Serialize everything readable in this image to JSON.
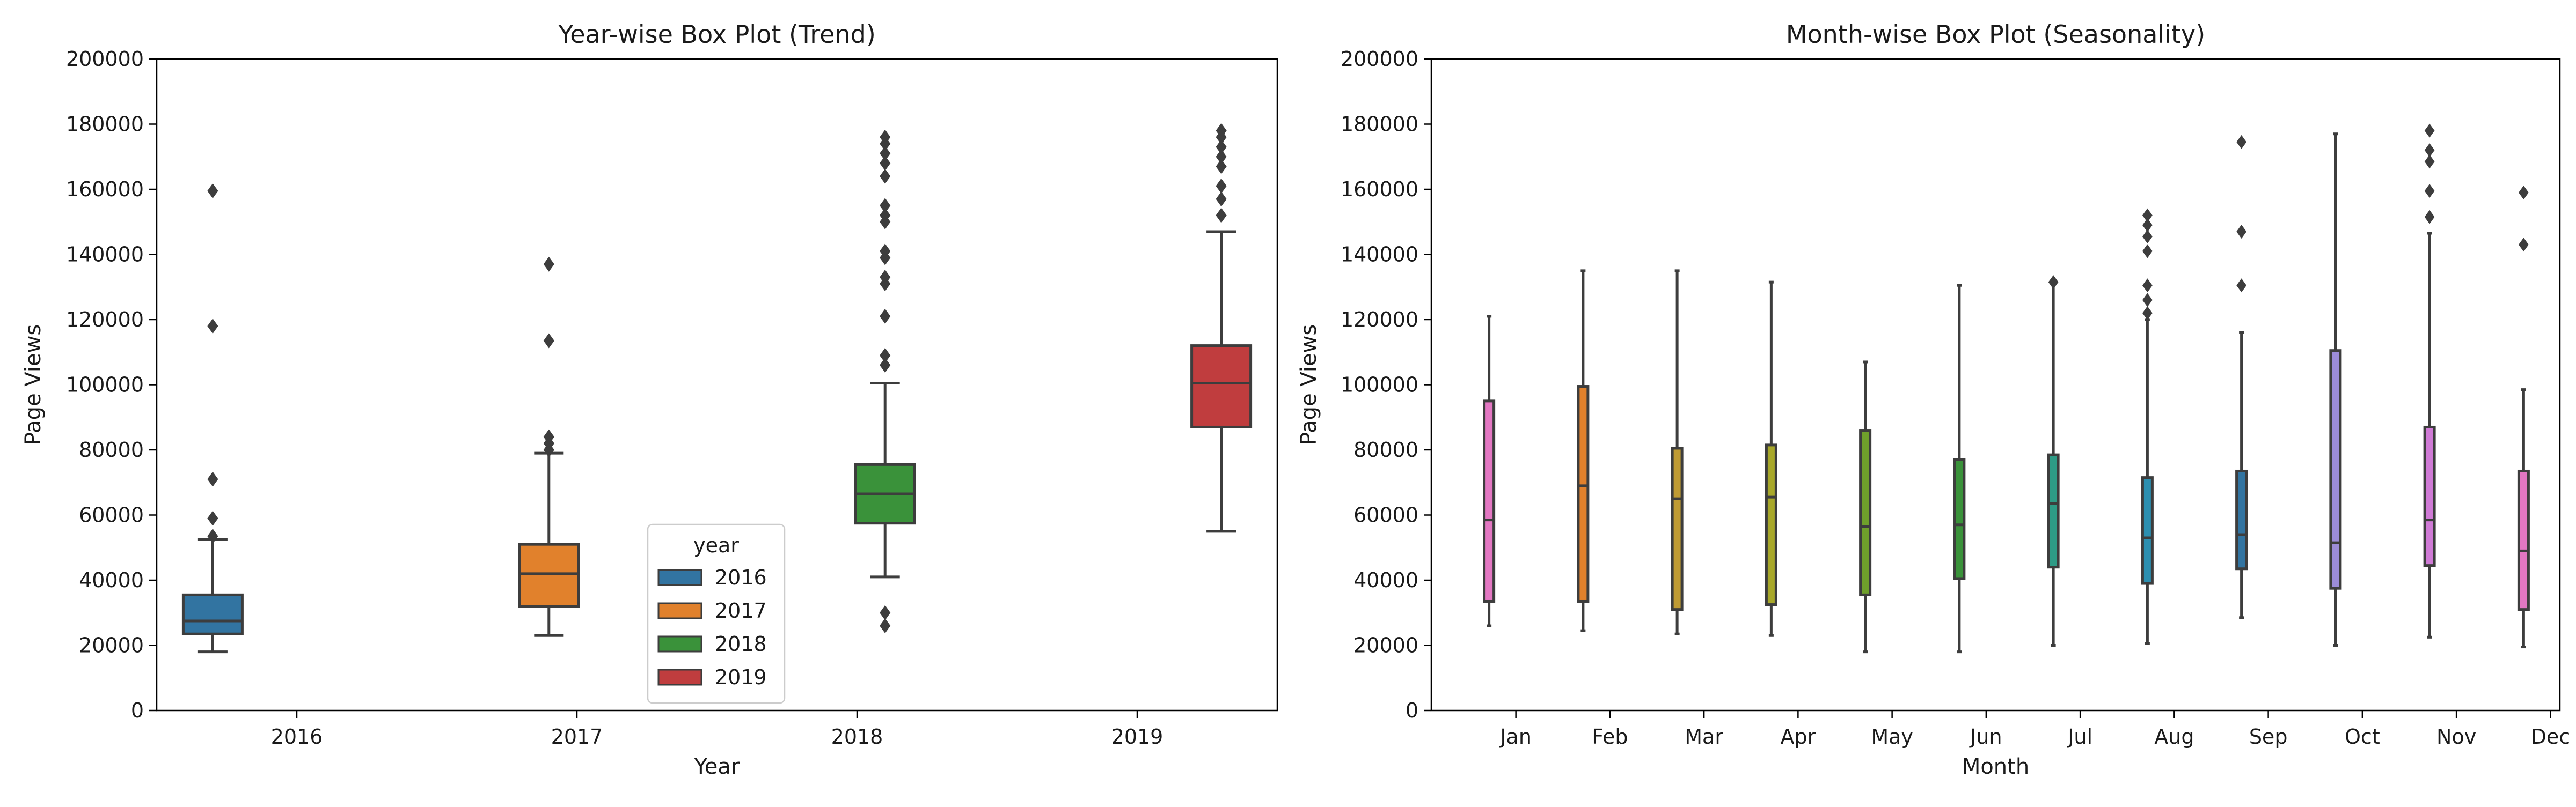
{
  "chart_data": [
    {
      "type": "box",
      "title": "Year-wise Box Plot (Trend)",
      "xlabel": "Year",
      "ylabel": "Page Views",
      "ylim": [
        0,
        200000
      ],
      "yticks": [
        0,
        20000,
        40000,
        60000,
        80000,
        100000,
        120000,
        140000,
        160000,
        180000,
        200000
      ],
      "categories": [
        "2016",
        "2017",
        "2018",
        "2019"
      ],
      "hue": "year",
      "legend": {
        "title": "year",
        "placement": "lower-center",
        "entries": [
          "2016",
          "2017",
          "2018",
          "2019"
        ]
      },
      "series": [
        {
          "name": "2016",
          "color": "#3274a1",
          "category": "2016",
          "whisker_low": 18000,
          "q1": 23500,
          "median": 27500,
          "q3": 35500,
          "whisker_high": 52500,
          "outliers": [
            53500,
            59000,
            71000,
            118000,
            159500
          ]
        },
        {
          "name": "2017",
          "color": "#e1812c",
          "category": "2017",
          "whisker_low": 23000,
          "q1": 32000,
          "median": 42000,
          "q3": 51000,
          "whisker_high": 79000,
          "outliers": [
            80000,
            82000,
            84000,
            113500,
            137000
          ]
        },
        {
          "name": "2018",
          "color": "#3a923a",
          "category": "2018",
          "whisker_low": 41000,
          "q1": 57500,
          "median": 66500,
          "q3": 75500,
          "whisker_high": 100500,
          "outliers": [
            26000,
            30000,
            106000,
            109000,
            121000,
            131000,
            133000,
            139000,
            141000,
            150000,
            152000,
            155000,
            164000,
            168000,
            171000,
            174000,
            176000
          ]
        },
        {
          "name": "2019",
          "color": "#c03d3e",
          "category": "2019",
          "whisker_low": 55000,
          "q1": 87000,
          "median": 100500,
          "q3": 112000,
          "whisker_high": 147000,
          "outliers": [
            152000,
            157000,
            161000,
            167000,
            170000,
            173000,
            176000,
            178000
          ]
        }
      ]
    },
    {
      "type": "box",
      "title": "Month-wise Box Plot (Seasonality)",
      "xlabel": "Month",
      "ylabel": "Page Views",
      "ylim": [
        0,
        200000
      ],
      "yticks": [
        0,
        20000,
        40000,
        60000,
        80000,
        100000,
        120000,
        140000,
        160000,
        180000,
        200000
      ],
      "categories": [
        "Jan",
        "Feb",
        "Mar",
        "Apr",
        "May",
        "Jun",
        "Jul",
        "Aug",
        "Sep",
        "Oct",
        "Nov",
        "Dec"
      ],
      "series": [
        {
          "category": "Jan",
          "color": "#e377c2",
          "whisker_low": 26000,
          "q1": 33500,
          "median": 58500,
          "q3": 95000,
          "whisker_high": 121000,
          "outliers": []
        },
        {
          "category": "Feb",
          "color": "#e1812c",
          "whisker_low": 24500,
          "q1": 33500,
          "median": 69000,
          "q3": 99500,
          "whisker_high": 135000,
          "outliers": []
        },
        {
          "category": "Mar",
          "color": "#bf9b34",
          "whisker_low": 23500,
          "q1": 31000,
          "median": 65000,
          "q3": 80500,
          "whisker_high": 135000,
          "outliers": []
        },
        {
          "category": "Apr",
          "color": "#a8a82a",
          "whisker_low": 23000,
          "q1": 32500,
          "median": 65500,
          "q3": 81500,
          "whisker_high": 131500,
          "outliers": []
        },
        {
          "category": "May",
          "color": "#6fa02b",
          "whisker_low": 18000,
          "q1": 35500,
          "median": 56500,
          "q3": 86000,
          "whisker_high": 107000,
          "outliers": []
        },
        {
          "category": "Jun",
          "color": "#3a923a",
          "whisker_low": 18000,
          "q1": 40500,
          "median": 57000,
          "q3": 77000,
          "whisker_high": 130500,
          "outliers": []
        },
        {
          "category": "Jul",
          "color": "#2e9b86",
          "whisker_low": 20000,
          "q1": 44000,
          "median": 63500,
          "q3": 78500,
          "whisker_high": 131000,
          "outliers": [
            131500
          ]
        },
        {
          "category": "Aug",
          "color": "#2c8fb0",
          "whisker_low": 20500,
          "q1": 39000,
          "median": 53000,
          "q3": 71500,
          "whisker_high": 120000,
          "outliers": [
            122000,
            126000,
            130500,
            141000,
            145500,
            149000,
            152000
          ]
        },
        {
          "category": "Sep",
          "color": "#3274a1",
          "whisker_low": 28500,
          "q1": 43500,
          "median": 54000,
          "q3": 73500,
          "whisker_high": 116000,
          "outliers": [
            130500,
            147000,
            174500
          ]
        },
        {
          "category": "Oct",
          "color": "#9c8cd8",
          "whisker_low": 20000,
          "q1": 37500,
          "median": 51500,
          "q3": 110500,
          "whisker_high": 177000,
          "outliers": []
        },
        {
          "category": "Nov",
          "color": "#d07ad6",
          "whisker_low": 22500,
          "q1": 44500,
          "median": 58500,
          "q3": 87000,
          "whisker_high": 146500,
          "outliers": [
            151500,
            159500,
            168500,
            172000,
            178000
          ]
        },
        {
          "category": "Dec",
          "color": "#e377c2",
          "whisker_low": 19500,
          "q1": 31000,
          "median": 49000,
          "q3": 73500,
          "whisker_high": 98500,
          "outliers": [
            143000,
            159000
          ]
        }
      ]
    }
  ]
}
